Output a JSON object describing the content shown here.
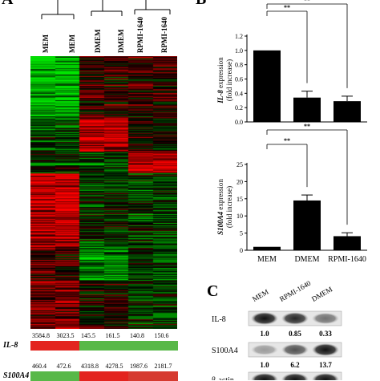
{
  "panel_a": {
    "letter": "A",
    "columns": [
      "MEM",
      "MEM",
      "DMEM",
      "DMEM",
      "RPMI-1640",
      "RPMI-1640"
    ],
    "rows": [
      {
        "gene": "IL-8",
        "values": [
          "3584.8",
          "3023.5",
          "145.5",
          "161.5",
          "140.8",
          "150.6"
        ],
        "bar_colors": [
          "#e3241f",
          "#e3241f",
          "#58b848",
          "#58b848",
          "#58b848",
          "#58b848"
        ]
      },
      {
        "gene": "S100A4",
        "values": [
          "460.4",
          "472.6",
          "4318.8",
          "4278.5",
          "1987.6",
          "2181.7"
        ],
        "bar_colors": [
          "#58b848",
          "#58b848",
          "#e3241f",
          "#e3241f",
          "#d63a30",
          "#d63a30"
        ]
      }
    ]
  },
  "panel_b": {
    "letter": "B",
    "charts": [
      {
        "type": "bar",
        "categories": [
          "MEM",
          "DMEM",
          "RPMI-1640"
        ],
        "values": [
          1.0,
          0.34,
          0.29
        ],
        "errors": [
          0.0,
          0.09,
          0.07
        ],
        "ylabel_gene": "IL-8",
        "ylabel_rest": " expression",
        "ylabel_line2": "(fold increase)",
        "ylim": [
          0,
          1.2
        ],
        "yticks": [
          "0.0",
          "0.2",
          "0.4",
          "0.6",
          "0.8",
          "1.0",
          "1.2"
        ],
        "significance": [
          "**",
          "**"
        ]
      },
      {
        "type": "bar",
        "categories": [
          "MEM",
          "DMEM",
          "RPMI-1640"
        ],
        "values": [
          1.0,
          14.5,
          4.1
        ],
        "errors": [
          0.0,
          1.6,
          1.0
        ],
        "ylabel_gene": "S100A4",
        "ylabel_rest": " expression",
        "ylabel_line2": "(fold increase)",
        "ylim": [
          0,
          25
        ],
        "yticks": [
          "0",
          "5",
          "10",
          "15",
          "20",
          "25"
        ],
        "significance": [
          "**",
          "**"
        ]
      }
    ]
  },
  "panel_c": {
    "letter": "C",
    "columns": [
      "MEM",
      "RPMI-1640",
      "DMEM"
    ],
    "bands": [
      {
        "label": "IL-8",
        "values": [
          "1.0",
          "0.85",
          "0.33"
        ]
      },
      {
        "label": "S100A4",
        "values": [
          "1.0",
          "6.2",
          "13.7"
        ]
      },
      {
        "label": "β-actin",
        "values": []
      }
    ]
  }
}
